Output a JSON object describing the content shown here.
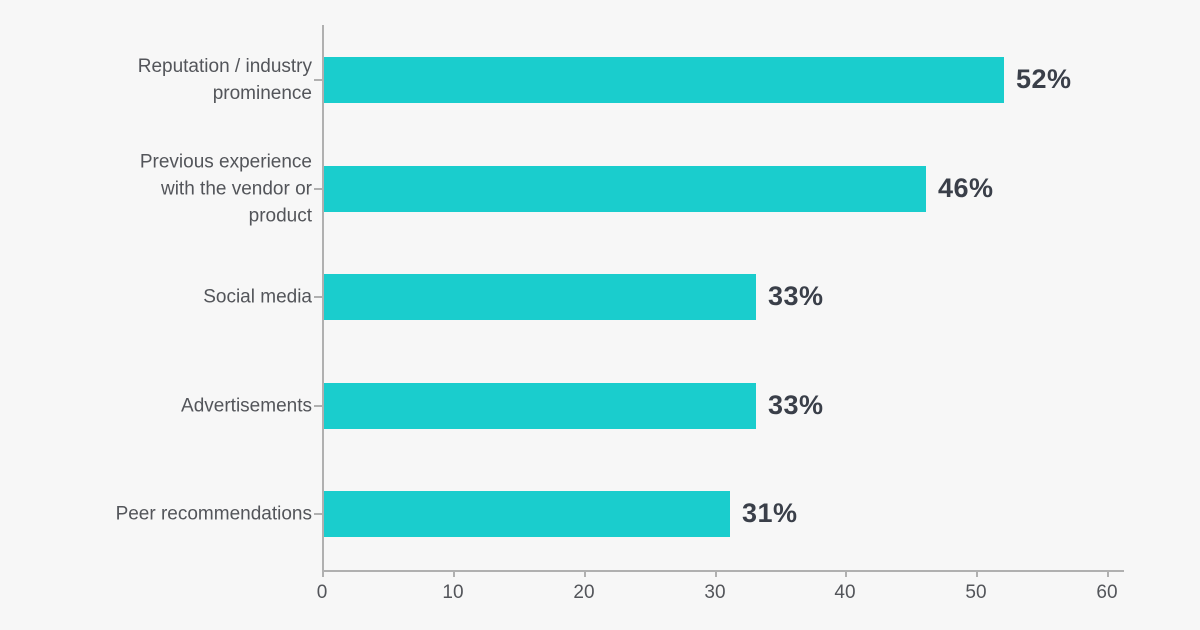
{
  "page": {
    "background_color": "#f7f7f7"
  },
  "chart_data": {
    "type": "bar",
    "orientation": "horizontal",
    "title": "",
    "xlabel": "",
    "ylabel": "",
    "categories": [
      "Reputation / industry prominence",
      "Previous experience with the vendor or product",
      "Social media",
      "Advertisements",
      "Peer recommendations"
    ],
    "category_lines": [
      [
        "Reputation / industry",
        "prominence"
      ],
      [
        "Previous experience",
        "with the vendor or",
        "product"
      ],
      [
        "Social media"
      ],
      [
        "Advertisements"
      ],
      [
        "Peer recommendations"
      ]
    ],
    "values": [
      52,
      46,
      33,
      33,
      31
    ],
    "value_labels": [
      "52%",
      "46%",
      "33%",
      "33%",
      "31%"
    ],
    "x_ticks": [
      0,
      10,
      20,
      30,
      40,
      50,
      60
    ],
    "x_tick_labels": [
      "0",
      "10",
      "20",
      "30",
      "40",
      "50",
      "60"
    ],
    "xlim": [
      0,
      60
    ],
    "grid": false,
    "legend": "none",
    "bar_color": "#1acdcd",
    "axis_color": "#b0b0b0",
    "category_label_color": "#53555a",
    "value_label_color": "#3a3f49",
    "tick_label_color": "#53555a"
  }
}
